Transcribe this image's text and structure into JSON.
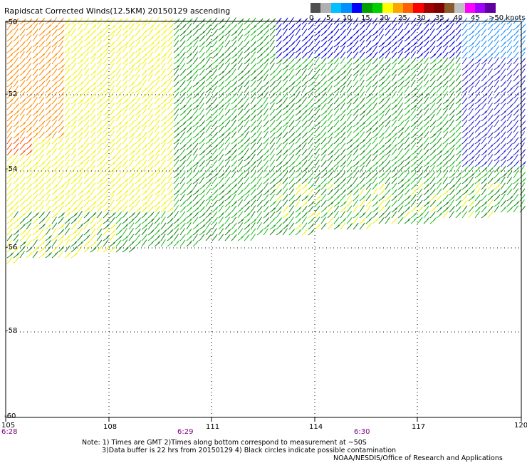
{
  "title": "Rapidscat Corrected Winds(12.5KM) 20150129 ascending",
  "legend": {
    "colors": [
      "#505050",
      "#b0b0b0",
      "#00c0ff",
      "#0090ff",
      "#0000ff",
      "#00a000",
      "#00d000",
      "#ffff00",
      "#ffa500",
      "#ff6000",
      "#ff0000",
      "#a00000",
      "#800000",
      "#8b5a2b",
      "#c0c0c0",
      "#ff00ff",
      "#a000ff",
      "#6000a0"
    ],
    "labels": [
      "0",
      "5",
      "10",
      "15",
      "20",
      "25",
      "30",
      "35",
      "40",
      "45",
      ">50 knots"
    ]
  },
  "axes": {
    "x_ticks": [
      "105",
      "108",
      "111",
      "114",
      "117",
      "120"
    ],
    "y_ticks": [
      "-50",
      "-52",
      "-54",
      "-56",
      "-58",
      "-60"
    ]
  },
  "times": [
    "6:28",
    "6:29",
    "6:30"
  ],
  "notes": {
    "line1": "Note: 1) Times are GMT 2)Times along bottom correspond to measurement at ~50S",
    "line2": "3)Data buffer is 22 hrs from 20150129 4) Black circles indicate possible contamination",
    "line3": "NOAA/NESDIS/Office of Research and Applications"
  }
}
